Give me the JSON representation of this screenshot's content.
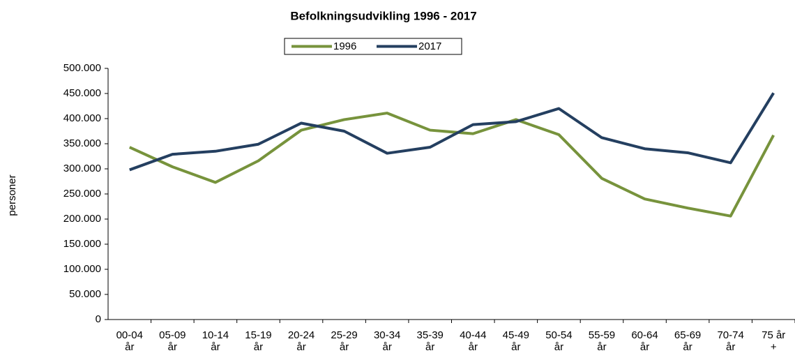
{
  "chart_data": {
    "type": "line",
    "title": "Befolkningsudvikling 1996 - 2017",
    "y_label": "personer",
    "categories": [
      "00-04 år",
      "05-09 år",
      "10-14 år",
      "15-19 år",
      "20-24 år",
      "25-29 år",
      "30-34 år",
      "35-39 år",
      "40-44 år",
      "45-49 år",
      "50-54 år",
      "55-59 år",
      "60-64 år",
      "65-69 år",
      "70-74 år",
      "75 år +"
    ],
    "series": [
      {
        "name": "1996",
        "color": "#77933c",
        "values": [
          343000,
          304000,
          273000,
          316000,
          377000,
          398000,
          411000,
          377000,
          370000,
          398000,
          368000,
          281000,
          240000,
          222000,
          206000,
          367000
        ]
      },
      {
        "name": "2017",
        "color": "#243f60",
        "values": [
          298000,
          329000,
          335000,
          349000,
          391000,
          375000,
          331000,
          343000,
          388000,
          394000,
          420000,
          362000,
          340000,
          332000,
          312000,
          451000
        ]
      }
    ],
    "ylim": [
      0,
      500000
    ],
    "yticks": [
      0,
      {
        "value": 50000,
        "label": "50.000"
      },
      {
        "value": 100000,
        "label": "100.000"
      },
      {
        "value": 150000,
        "label": "150.000"
      },
      {
        "value": 200000,
        "label": "200.000"
      },
      {
        "value": 250000,
        "label": "250.000"
      },
      {
        "value": 300000,
        "label": "300.000"
      },
      {
        "value": 350000,
        "label": "350.000"
      },
      {
        "value": 400000,
        "label": "400.000"
      },
      {
        "value": 450000,
        "label": "450.000"
      },
      {
        "value": 500000,
        "label": "500.000"
      }
    ],
    "legend": "top"
  }
}
